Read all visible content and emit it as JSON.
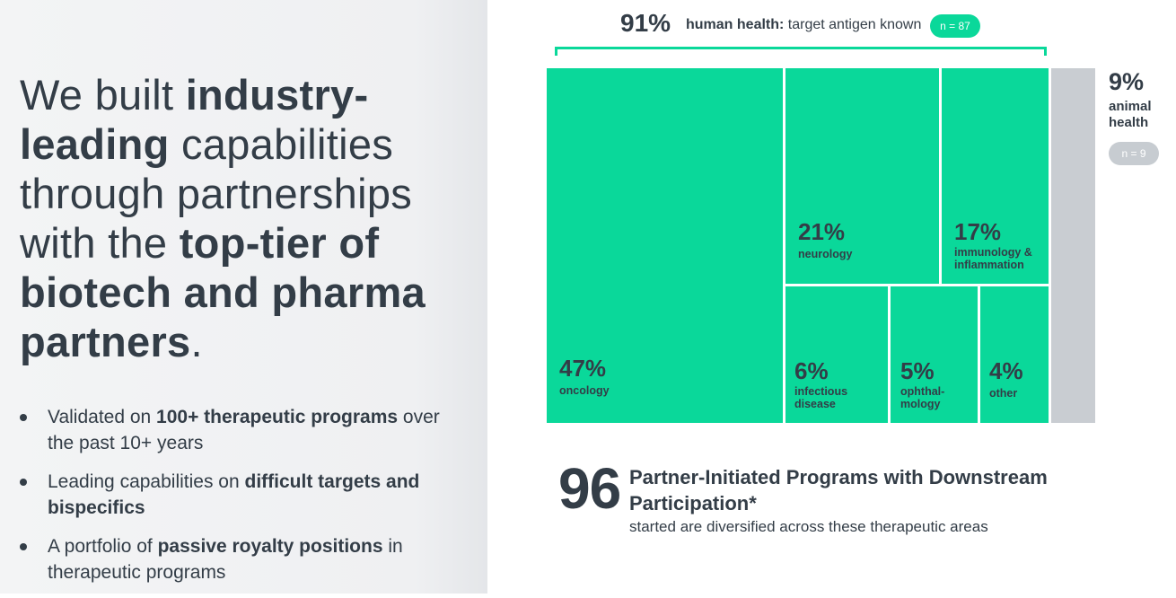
{
  "headline": {
    "parts": [
      {
        "text": "We built ",
        "bold": false
      },
      {
        "text": "industry-leading",
        "bold": true
      },
      {
        "text": " capabilities through partnerships with the ",
        "bold": false
      },
      {
        "text": "top-tier of biotech and pharma partners",
        "bold": true
      },
      {
        "text": ".",
        "bold": false
      }
    ]
  },
  "bullets": [
    {
      "pre": "Validated on ",
      "bold": "100+ therapeutic programs",
      "post": " over the past 10+ years"
    },
    {
      "pre": "Leading capabilities on ",
      "bold": "difficult targets and bispecifics",
      "post": ""
    },
    {
      "pre": "A portfolio of ",
      "bold": "passive royalty positions",
      "post": " in therapeutic programs"
    }
  ],
  "chart_data": {
    "type": "treemap",
    "group": {
      "percent": "91%",
      "label_bold": "human health:",
      "label": "target antigen known",
      "n": "n = 87"
    },
    "other_group": {
      "percent": "9%",
      "label": "animal health",
      "n": "n = 9"
    },
    "items": [
      {
        "key": "oncology",
        "percent": "47%",
        "label": "oncology",
        "value": 47
      },
      {
        "key": "neurology",
        "percent": "21%",
        "label": "neurology",
        "value": 21
      },
      {
        "key": "immunology",
        "percent": "17%",
        "label": "immunology & inflammation",
        "value": 17
      },
      {
        "key": "infectious",
        "percent": "6%",
        "label": "infectious disease",
        "value": 6
      },
      {
        "key": "ophthalmology",
        "percent": "5%",
        "label": "ophthal- mology",
        "value": 5
      },
      {
        "key": "other",
        "percent": "4%",
        "label": "other",
        "value": 4
      }
    ],
    "colors": {
      "human": "#0ad89a",
      "animal": "#c9cdd2"
    }
  },
  "summary": {
    "number": "96",
    "title": "Partner-Initiated Programs with Downstream Participation*",
    "subtitle": "started are diversified across these therapeutic areas"
  }
}
